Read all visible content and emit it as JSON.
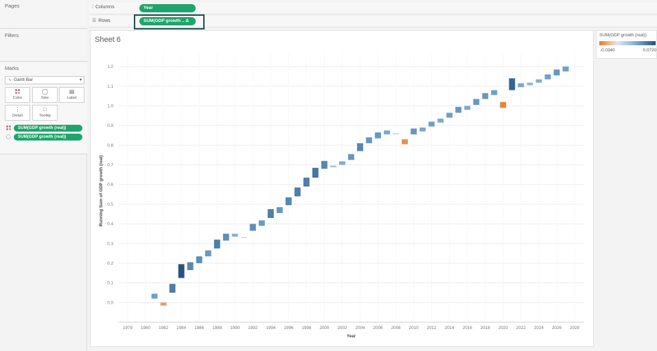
{
  "left_panel": {
    "pages_title": "Pages",
    "filters_title": "Filters",
    "marks_title": "Marks",
    "mark_type": "Gantt Bar",
    "mark_buttons": [
      "Color",
      "Size",
      "Label",
      "Detail",
      "Tooltip"
    ],
    "mark_pills": [
      "SUM(GDP growth (real))",
      "SUM(GDP growth (real))"
    ]
  },
  "shelves": {
    "columns_label": "Columns",
    "columns_pill": "Year",
    "rows_label": "Rows",
    "rows_pill": "SUM(GDP growth .. Δ"
  },
  "sheet": {
    "title": "Sheet 6"
  },
  "legend": {
    "title": "SUM(GDP growth (real))",
    "min_label": "-0.0340",
    "max_label": "0.0720",
    "min_color": "#e8772e",
    "max_color": "#25507a"
  },
  "chart_data": {
    "type": "gantt-waterfall",
    "xlabel": "Year",
    "ylabel": "Running Sum of GDP growth (real)",
    "x_ticks": [
      1978,
      1980,
      1982,
      1984,
      1986,
      1988,
      1990,
      1992,
      1994,
      1996,
      1998,
      2000,
      2002,
      2004,
      2006,
      2008,
      2010,
      2012,
      2014,
      2016,
      2018,
      2020,
      2022,
      2024,
      2026,
      2028
    ],
    "y_ticks": [
      "0.0",
      "0.1",
      "0.2",
      "0.3",
      "0.4",
      "0.5",
      "0.6",
      "0.7",
      "0.8",
      "0.9",
      "1.0",
      "1.1",
      "1.2"
    ],
    "xlim": [
      1977,
      2029
    ],
    "ylim": [
      -0.1,
      1.27
    ],
    "series": [
      {
        "x": 1980,
        "start": 0.0,
        "end": 0.0
      },
      {
        "x": 1981,
        "start": 0.02,
        "end": 0.045
      },
      {
        "x": 1982,
        "start": 0.0,
        "end": -0.015
      },
      {
        "x": 1983,
        "start": 0.05,
        "end": 0.095
      },
      {
        "x": 1984,
        "start": 0.125,
        "end": 0.195
      },
      {
        "x": 1985,
        "start": 0.165,
        "end": 0.205
      },
      {
        "x": 1986,
        "start": 0.2,
        "end": 0.235
      },
      {
        "x": 1987,
        "start": 0.235,
        "end": 0.265
      },
      {
        "x": 1988,
        "start": 0.275,
        "end": 0.32
      },
      {
        "x": 1989,
        "start": 0.315,
        "end": 0.35
      },
      {
        "x": 1990,
        "start": 0.335,
        "end": 0.35
      },
      {
        "x": 1991,
        "start": 0.33,
        "end": 0.333
      },
      {
        "x": 1992,
        "start": 0.365,
        "end": 0.4
      },
      {
        "x": 1993,
        "start": 0.39,
        "end": 0.418
      },
      {
        "x": 1994,
        "start": 0.43,
        "end": 0.475
      },
      {
        "x": 1995,
        "start": 0.455,
        "end": 0.485
      },
      {
        "x": 1996,
        "start": 0.495,
        "end": 0.535
      },
      {
        "x": 1997,
        "start": 0.54,
        "end": 0.585
      },
      {
        "x": 1998,
        "start": 0.59,
        "end": 0.635
      },
      {
        "x": 1999,
        "start": 0.635,
        "end": 0.685
      },
      {
        "x": 2000,
        "start": 0.68,
        "end": 0.72
      },
      {
        "x": 2001,
        "start": 0.688,
        "end": 0.696
      },
      {
        "x": 2002,
        "start": 0.7,
        "end": 0.718
      },
      {
        "x": 2003,
        "start": 0.725,
        "end": 0.755
      },
      {
        "x": 2004,
        "start": 0.77,
        "end": 0.81
      },
      {
        "x": 2005,
        "start": 0.81,
        "end": 0.84
      },
      {
        "x": 2006,
        "start": 0.835,
        "end": 0.865
      },
      {
        "x": 2007,
        "start": 0.855,
        "end": 0.875
      },
      {
        "x": 2008,
        "start": 0.856,
        "end": 0.86
      },
      {
        "x": 2009,
        "start": 0.83,
        "end": 0.805
      },
      {
        "x": 2010,
        "start": 0.855,
        "end": 0.885
      },
      {
        "x": 2011,
        "start": 0.87,
        "end": 0.89
      },
      {
        "x": 2012,
        "start": 0.895,
        "end": 0.92
      },
      {
        "x": 2013,
        "start": 0.915,
        "end": 0.935
      },
      {
        "x": 2014,
        "start": 0.94,
        "end": 0.965
      },
      {
        "x": 2015,
        "start": 0.965,
        "end": 0.995
      },
      {
        "x": 2016,
        "start": 0.98,
        "end": 1.0
      },
      {
        "x": 2017,
        "start": 1.005,
        "end": 1.035
      },
      {
        "x": 2018,
        "start": 1.035,
        "end": 1.065
      },
      {
        "x": 2019,
        "start": 1.055,
        "end": 1.08
      },
      {
        "x": 2020,
        "start": 1.02,
        "end": 0.99
      },
      {
        "x": 2021,
        "start": 1.08,
        "end": 1.14
      },
      {
        "x": 2022,
        "start": 1.095,
        "end": 1.115
      },
      {
        "x": 2023,
        "start": 1.105,
        "end": 1.118
      },
      {
        "x": 2024,
        "start": 1.118,
        "end": 1.135
      },
      {
        "x": 2025,
        "start": 1.135,
        "end": 1.16
      },
      {
        "x": 2026,
        "start": 1.155,
        "end": 1.185
      },
      {
        "x": 2027,
        "start": 1.175,
        "end": 1.2
      }
    ]
  }
}
